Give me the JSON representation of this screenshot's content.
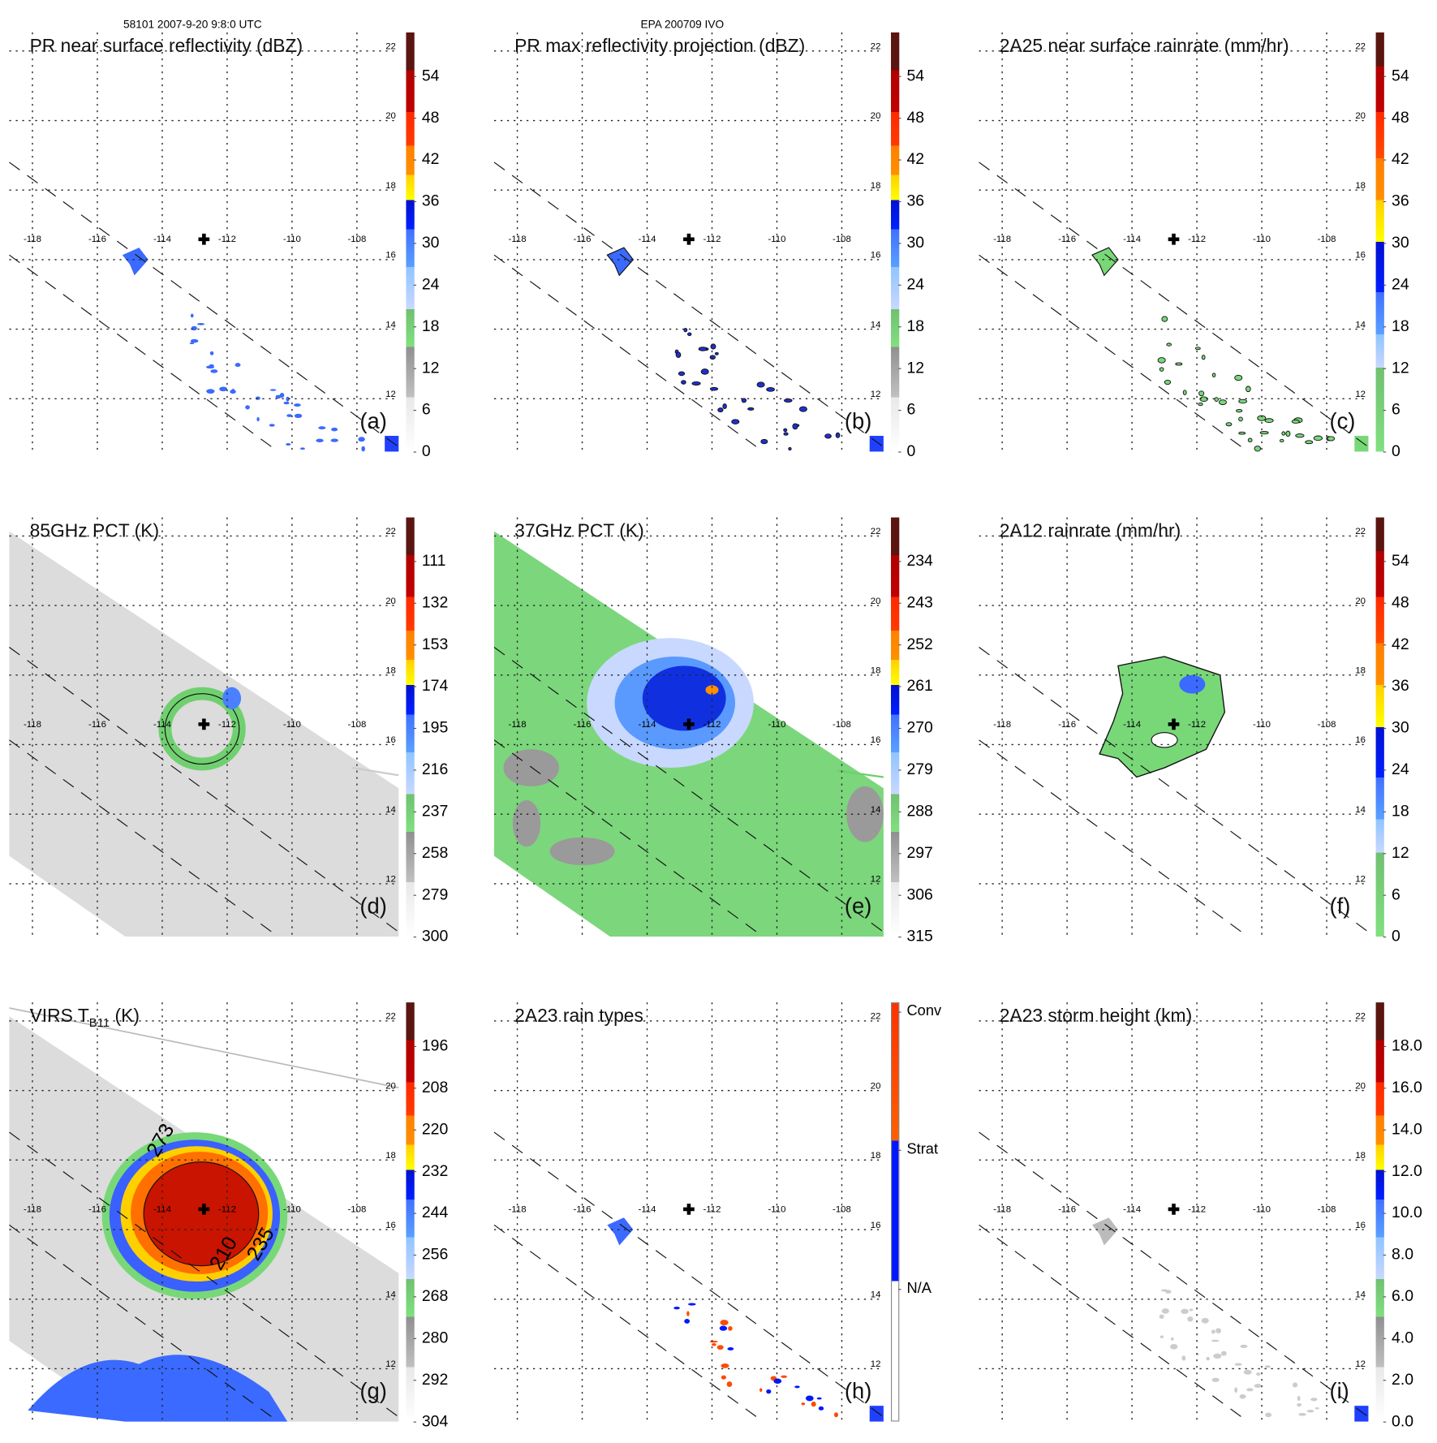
{
  "header": {
    "orbit_time": "58101 2007-9-20 9:8:0 UTC",
    "storm": "EPA 200709 IVO"
  },
  "axes": {
    "lon_labels": [
      "-118",
      "-116",
      "-114",
      "-112",
      "-110",
      "-108"
    ],
    "lat_labels": [
      "22",
      "20",
      "18",
      "16",
      "14",
      "12"
    ]
  },
  "panels": [
    {
      "id": "a",
      "title": "PR near surface reflectivity (dBZ)",
      "tag": "(a)",
      "ticks": [
        "54",
        "48",
        "42",
        "36",
        "30",
        "24",
        "18",
        "12",
        "6",
        "0"
      ]
    },
    {
      "id": "b",
      "title": "PR max reflectivity projection (dBZ)",
      "tag": "(b)",
      "ticks": [
        "54",
        "48",
        "42",
        "36",
        "30",
        "24",
        "18",
        "12",
        "6",
        "0"
      ]
    },
    {
      "id": "c",
      "title": "2A25 near surface rainrate (mm/hr)",
      "tag": "(c)",
      "ticks": [
        "54",
        "48",
        "42",
        "36",
        "30",
        "24",
        "18",
        "12",
        "6",
        "0"
      ]
    },
    {
      "id": "d",
      "title": "85GHz PCT (K)",
      "tag": "(d)",
      "ticks": [
        "111",
        "132",
        "153",
        "174",
        "195",
        "216",
        "237",
        "258",
        "279",
        "300"
      ]
    },
    {
      "id": "e",
      "title": "37GHz PCT (K)",
      "tag": "(e)",
      "ticks": [
        "234",
        "243",
        "252",
        "261",
        "270",
        "279",
        "288",
        "297",
        "306",
        "315"
      ]
    },
    {
      "id": "f",
      "title": "2A12 rainrate (mm/hr)",
      "tag": "(f)",
      "ticks": [
        "54",
        "48",
        "42",
        "36",
        "30",
        "24",
        "18",
        "12",
        "6",
        "0"
      ]
    },
    {
      "id": "g",
      "title": "VIRS T",
      "title_sub": "B11",
      "title_suffix": " (K)",
      "tag": "(g)",
      "ticks": [
        "196",
        "208",
        "220",
        "232",
        "244",
        "256",
        "268",
        "280",
        "292",
        "304"
      ],
      "contour_labels": [
        "273",
        "210",
        "235"
      ]
    },
    {
      "id": "h",
      "title": "2A23 rain types",
      "tag": "(h)",
      "ticks": [
        "Conv",
        "Strat",
        "N/A"
      ]
    },
    {
      "id": "i",
      "title": "2A23 storm height (km)",
      "tag": "(i)",
      "ticks": [
        "18.0",
        "16.0",
        "14.0",
        "12.0",
        "10.0",
        "8.0",
        "6.0",
        "4.0",
        "2.0",
        "0.0"
      ]
    }
  ],
  "colors": {
    "land_green": "#78d878",
    "storm_red": "#c81400",
    "conv": "#ff4a00",
    "strat": "#0018ff"
  }
}
